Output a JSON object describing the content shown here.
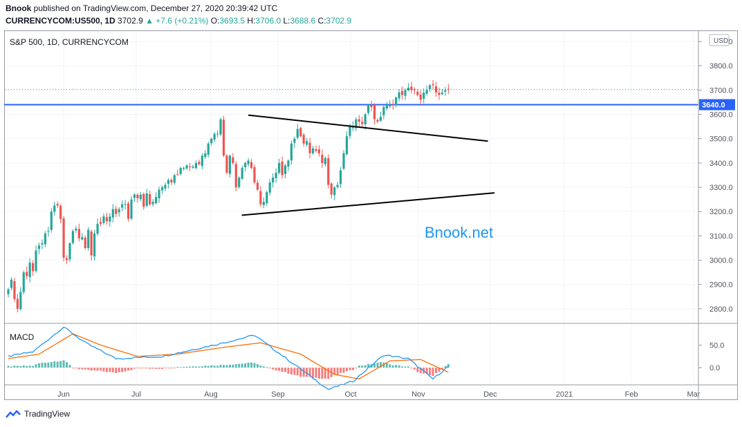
{
  "header": {
    "author": "Bnook",
    "published_text": " published on TradingView.com, December 27, 2020 20:39:42 UTC",
    "symbol_line": "CURRENCYCOM:US500, 1D",
    "last": "3702.9",
    "change": "▲ +7.6 (+0.21%)",
    "o_label": "O:",
    "o": "3693.5",
    "h_label": "H:",
    "h": "3706.0",
    "l_label": "L:",
    "l": "3688.6",
    "c_label": "C:",
    "c": "3702.9"
  },
  "pane_title": "S&P 500, 1D, CURRENCYCOM",
  "currency": "USD",
  "watermark": "Bnook.net",
  "macd_label": "MACD",
  "footer_brand": "TradingView",
  "colors": {
    "up": "#26a69a",
    "down": "#ef5350",
    "hline": "#2962ff",
    "macd": "#2196f3",
    "signal": "#ff6d00",
    "hist_up": "#26a69a",
    "hist_down": "#ef5350"
  },
  "chart_data": {
    "type": "candlestick",
    "price_axis": {
      "ticks": [
        2800,
        2900,
        3000,
        3100,
        3200,
        3300,
        3400,
        3500,
        3600,
        3700,
        3800,
        3900
      ],
      "ylim": [
        2740,
        3940
      ]
    },
    "last_price_line": 3702.9,
    "horizontal_level": {
      "value": 3640.0,
      "label": "3640.0"
    },
    "time_axis_labels": [
      "Jun",
      "Jul",
      "Aug",
      "Sep",
      "Oct",
      "Nov",
      "Dec",
      "2021",
      "Feb",
      "Mar"
    ],
    "trendlines": [
      {
        "from": [
          "2020-08-24",
          3597
        ],
        "to": [
          "2020-12-11",
          3490
        ]
      },
      {
        "from": [
          "2020-08-21",
          3185
        ],
        "to": [
          "2020-12-14",
          3277
        ]
      }
    ],
    "candles_anchor_closes": [
      2880,
      2920,
      2840,
      2800,
      2870,
      2950,
      2935,
      2990,
      2955,
      3040,
      3060,
      3070,
      3110,
      3120,
      3200,
      3225,
      3225,
      3170,
      3010,
      3000,
      3070,
      3120,
      3130,
      3090,
      3095,
      3050,
      3125,
      3020,
      3110,
      3150,
      3150,
      3180,
      3160,
      3180,
      3210,
      3190,
      3210,
      3230,
      3230,
      3170,
      3250,
      3270,
      3255,
      3270,
      3220,
      3275,
      3230,
      3240,
      3260,
      3290,
      3300,
      3310,
      3330,
      3320,
      3350,
      3355,
      3380,
      3380,
      3390,
      3385,
      3385,
      3400,
      3395,
      3430,
      3440,
      3480,
      3500,
      3520,
      3520,
      3580,
      3430,
      3360,
      3430,
      3400,
      3300,
      3340,
      3380,
      3400,
      3410,
      3380,
      3320,
      3290,
      3230,
      3240,
      3280,
      3320,
      3340,
      3360,
      3400,
      3350,
      3390,
      3410,
      3480,
      3500,
      3540,
      3510,
      3480,
      3490,
      3440,
      3460,
      3450,
      3440,
      3400,
      3420,
      3310,
      3270,
      3300,
      3310,
      3370,
      3440,
      3510,
      3550,
      3550,
      3580,
      3570,
      3560,
      3600,
      3640,
      3630,
      3580,
      3570,
      3590,
      3630,
      3640,
      3640,
      3640,
      3670,
      3690,
      3680,
      3700,
      3710,
      3700,
      3700,
      3680,
      3660,
      3690,
      3700,
      3720,
      3720,
      3690,
      3680,
      3690,
      3700,
      3702.9
    ],
    "macd": {
      "label": "MACD",
      "ticks": [
        0.0,
        50.0
      ],
      "ylim": [
        -35,
        95
      ],
      "macd_anchor": [
        [
          0,
          25
        ],
        [
          8,
          35
        ],
        [
          18,
          90
        ],
        [
          25,
          55
        ],
        [
          35,
          20
        ],
        [
          50,
          25
        ],
        [
          70,
          55
        ],
        [
          80,
          72
        ],
        [
          92,
          12
        ],
        [
          104,
          -48
        ],
        [
          112,
          -30
        ],
        [
          122,
          28
        ],
        [
          130,
          20
        ],
        [
          138,
          -25
        ],
        [
          146,
          20
        ],
        [
          156,
          48
        ],
        [
          168,
          58
        ],
        [
          180,
          42
        ],
        [
          186,
          40
        ]
      ],
      "signal_anchor": [
        [
          0,
          20
        ],
        [
          10,
          30
        ],
        [
          21,
          75
        ],
        [
          30,
          50
        ],
        [
          42,
          25
        ],
        [
          55,
          30
        ],
        [
          70,
          45
        ],
        [
          82,
          55
        ],
        [
          95,
          30
        ],
        [
          106,
          -15
        ],
        [
          114,
          -25
        ],
        [
          124,
          15
        ],
        [
          134,
          18
        ],
        [
          143,
          -10
        ],
        [
          152,
          20
        ],
        [
          164,
          50
        ],
        [
          176,
          50
        ],
        [
          186,
          38
        ]
      ]
    }
  }
}
